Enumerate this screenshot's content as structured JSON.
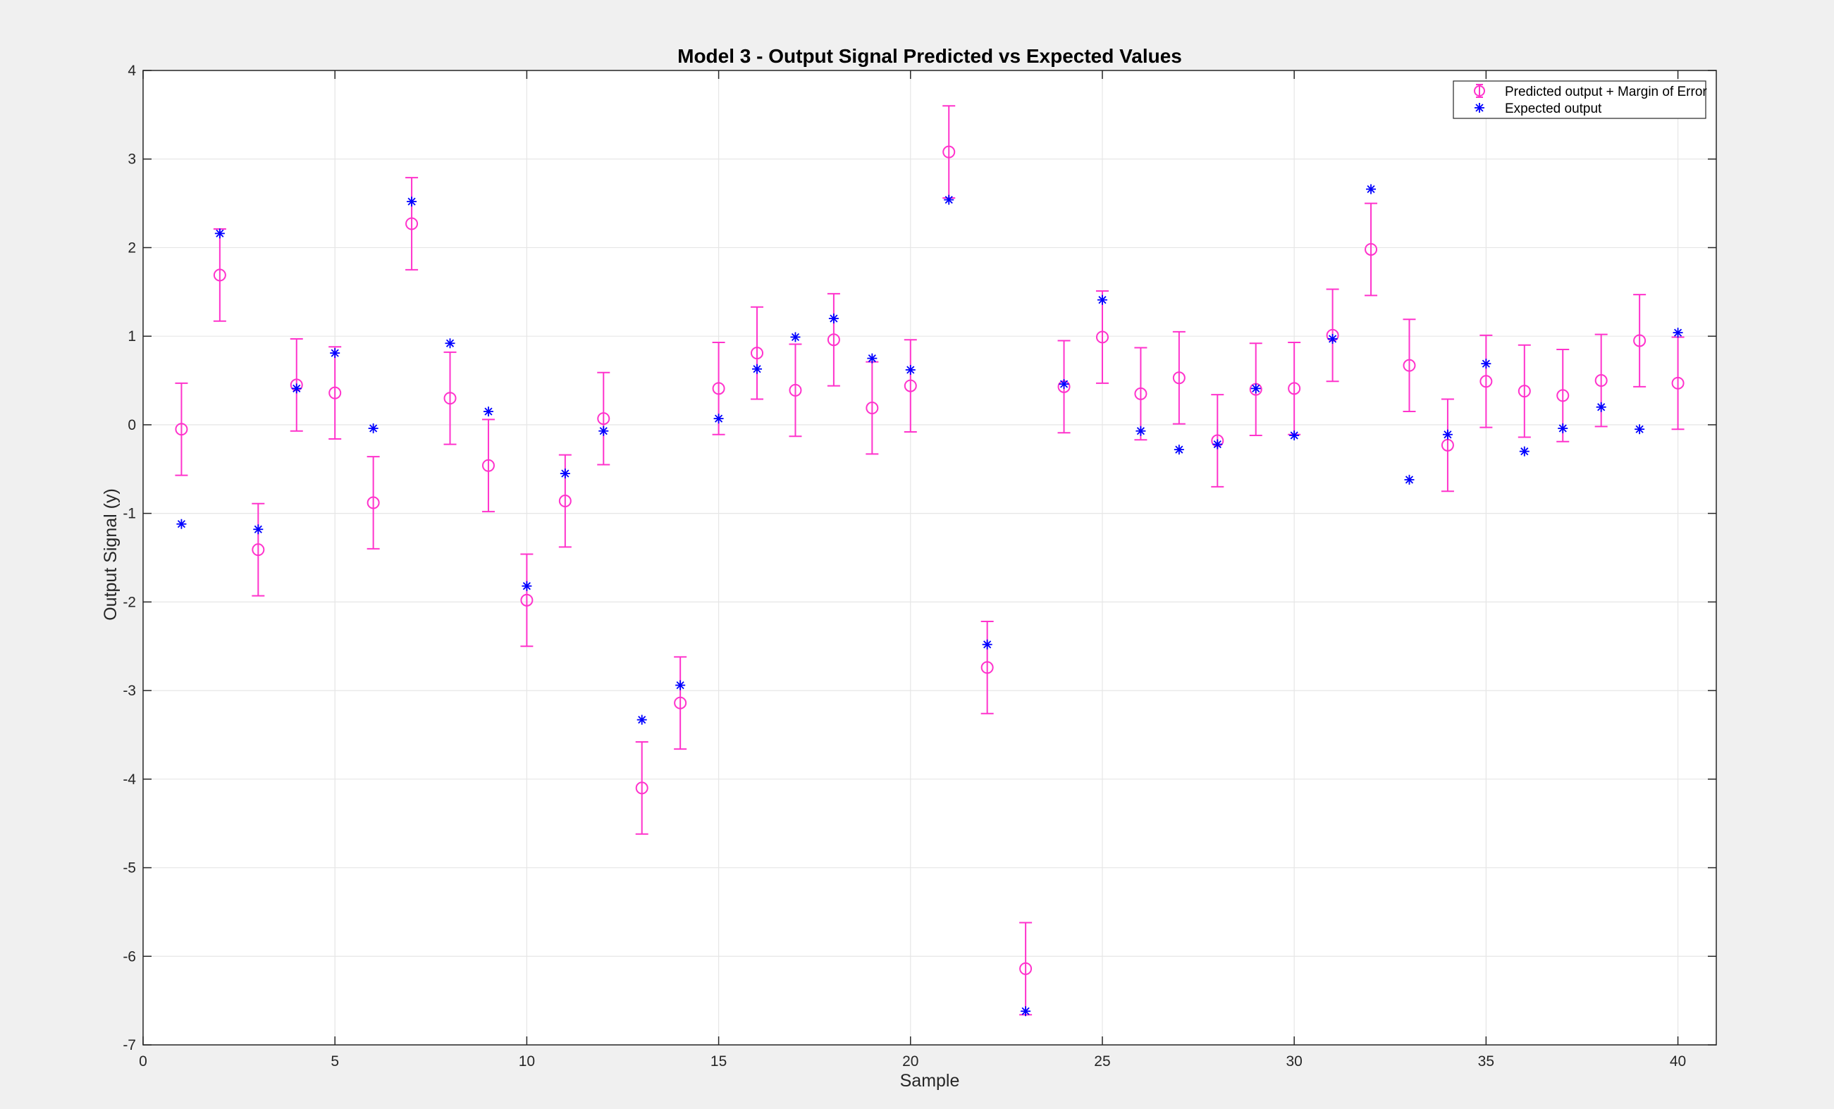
{
  "chart_data": {
    "type": "scatter",
    "title": "Model 3 - Output Signal Predicted vs Expected Values",
    "xlabel": "Sample",
    "ylabel": "Output Signal (y)",
    "xlim": [
      0,
      41
    ],
    "ylim": [
      -7,
      4
    ],
    "xticks": [
      0,
      5,
      10,
      15,
      20,
      25,
      30,
      35,
      40
    ],
    "yticks": [
      -7,
      -6,
      -5,
      -4,
      -3,
      -2,
      -1,
      0,
      1,
      2,
      3,
      4
    ],
    "grid": true,
    "legend_position": "top-right",
    "margin_of_error": 0.52,
    "series": [
      {
        "name": "Predicted output + Margin of Error",
        "marker": "circle-with-errorbar",
        "color": "#ff33cc",
        "x": [
          1,
          2,
          3,
          4,
          5,
          6,
          7,
          8,
          9,
          10,
          11,
          12,
          13,
          14,
          15,
          16,
          17,
          18,
          19,
          20,
          21,
          22,
          23,
          24,
          25,
          26,
          27,
          28,
          29,
          30,
          31,
          32,
          33,
          34,
          35,
          36,
          37,
          38,
          39,
          40
        ],
        "y": [
          -0.05,
          1.69,
          -1.41,
          0.45,
          0.36,
          -0.88,
          2.27,
          0.3,
          -0.46,
          -1.98,
          -0.86,
          0.07,
          -4.1,
          -3.14,
          0.41,
          0.81,
          0.39,
          0.96,
          0.19,
          0.44,
          3.08,
          -2.74,
          -6.14,
          0.43,
          0.99,
          0.35,
          0.53,
          -0.18,
          0.4,
          0.41,
          1.01,
          1.98,
          0.67,
          -0.23,
          0.49,
          0.38,
          0.33,
          0.5,
          0.95,
          0.47
        ]
      },
      {
        "name": "Expected output",
        "marker": "asterisk",
        "color": "#0000ff",
        "x": [
          1,
          2,
          3,
          4,
          5,
          6,
          7,
          8,
          9,
          10,
          11,
          12,
          13,
          14,
          15,
          16,
          17,
          18,
          19,
          20,
          21,
          22,
          23,
          24,
          25,
          26,
          27,
          28,
          29,
          30,
          31,
          32,
          33,
          34,
          35,
          36,
          37,
          38,
          39,
          40
        ],
        "y": [
          -1.12,
          2.16,
          -1.18,
          0.41,
          0.81,
          -0.04,
          2.52,
          0.92,
          0.15,
          -1.82,
          -0.55,
          -0.07,
          -3.33,
          -2.94,
          0.07,
          0.63,
          0.99,
          1.2,
          0.75,
          0.62,
          2.54,
          -2.48,
          -6.62,
          0.46,
          1.41,
          -0.07,
          -0.28,
          -0.22,
          0.41,
          -0.12,
          0.97,
          2.66,
          -0.62,
          -0.11,
          0.69,
          -0.3,
          -0.04,
          0.2,
          -0.05,
          1.04
        ]
      }
    ]
  }
}
